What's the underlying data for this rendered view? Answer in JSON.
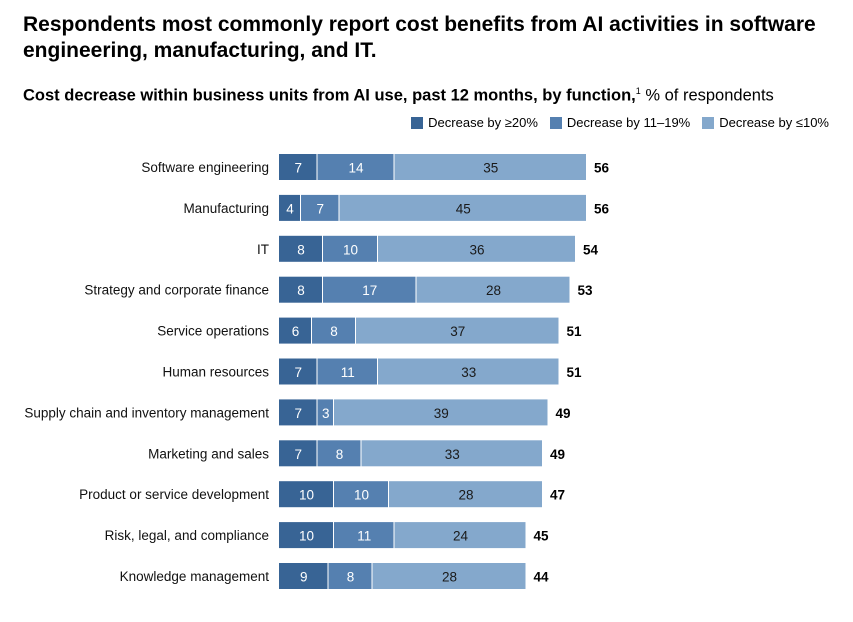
{
  "chart_data": {
    "type": "bar",
    "orientation": "horizontal",
    "stacked": true,
    "title": "Respondents most commonly report cost benefits from AI activities in software engineering, manufacturing, and IT.",
    "subtitle_bold": "Cost decrease within business units from AI use, past 12 months, by function,",
    "subtitle_footnote": "1",
    "subtitle_unit": "% of respondents",
    "legend_position": "top-right",
    "categories": [
      "Software engineering",
      "Manufacturing",
      "IT",
      "Strategy and corporate finance",
      "Service operations",
      "Human resources",
      "Supply chain and inventory management",
      "Marketing and sales",
      "Product or service development",
      "Risk, legal, and compliance",
      "Knowledge management"
    ],
    "series": [
      {
        "name": "Decrease by ≥20%",
        "color": "#386495",
        "values": [
          7,
          4,
          8,
          8,
          6,
          7,
          7,
          7,
          10,
          10,
          9
        ]
      },
      {
        "name": "Decrease by 11–19%",
        "color": "#5580b0",
        "values": [
          14,
          7,
          10,
          17,
          8,
          11,
          3,
          8,
          10,
          11,
          8
        ]
      },
      {
        "name": "Decrease by ≤10%",
        "color": "#84a8cc",
        "values": [
          35,
          45,
          36,
          28,
          37,
          33,
          39,
          33,
          28,
          24,
          28
        ]
      }
    ],
    "totals": [
      56,
      56,
      54,
      53,
      51,
      51,
      49,
      49,
      47,
      45,
      44
    ],
    "grid": false
  }
}
